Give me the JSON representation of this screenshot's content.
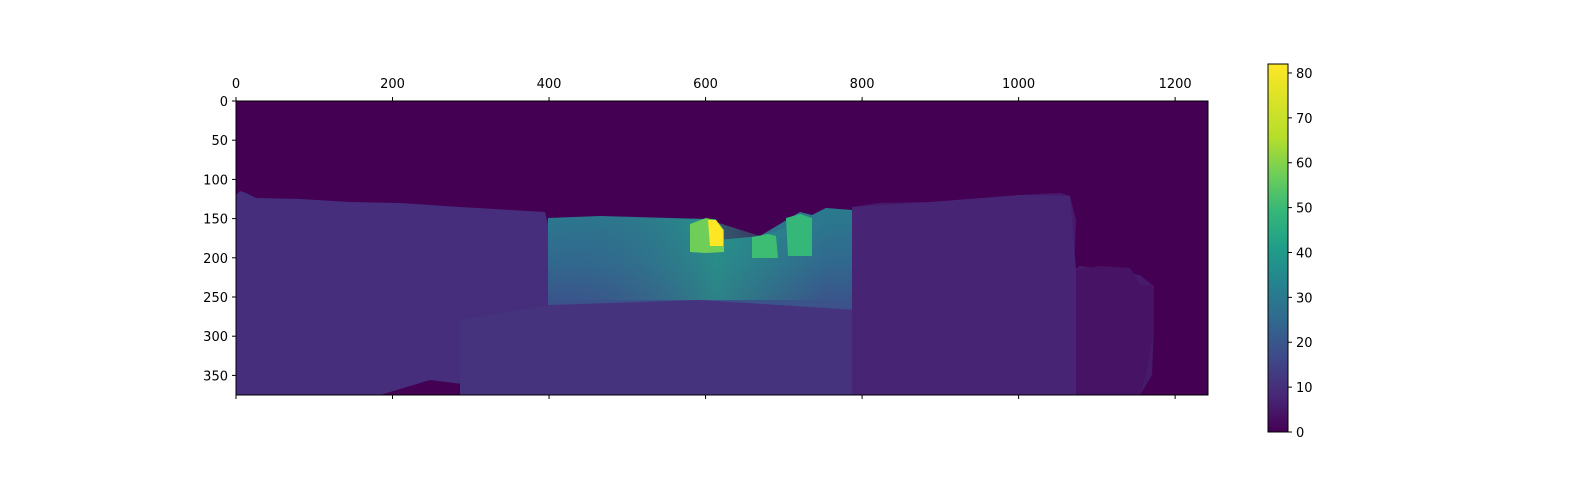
{
  "chart_data": {
    "type": "heatmap",
    "title": "",
    "xlabel": "",
    "ylabel": "",
    "colormap": "viridis",
    "image_width": 1242,
    "image_height": 375,
    "xlim": [
      0,
      1242
    ],
    "ylim": [
      375,
      0
    ],
    "x_ticks": [
      0,
      200,
      400,
      600,
      800,
      1000,
      1200
    ],
    "y_ticks": [
      0,
      50,
      100,
      150,
      200,
      250,
      300,
      350
    ],
    "x_tick_position": "top",
    "colorbar": {
      "min": 0,
      "max": 82,
      "ticks": [
        0,
        10,
        20,
        30,
        40,
        50,
        60,
        70,
        80
      ],
      "placement": "right"
    },
    "background_value": 0,
    "regions": [
      {
        "name": "sky",
        "value": 0
      },
      {
        "name": "left-buildings",
        "x_range": [
          0,
          400
        ],
        "y_range": [
          120,
          375
        ],
        "value": 10
      },
      {
        "name": "road-center",
        "x_range": [
          400,
          760
        ],
        "y_range": [
          150,
          375
        ],
        "value_range": [
          9,
          50
        ]
      },
      {
        "name": "far-object",
        "x_range": [
          580,
          620
        ],
        "y_range": [
          150,
          195
        ],
        "value": 82
      },
      {
        "name": "right-buildings",
        "x_range": [
          790,
          1070
        ],
        "y_range": [
          120,
          375
        ],
        "value": 9
      },
      {
        "name": "right-edge-objects",
        "x_range": [
          1070,
          1170
        ],
        "y_range": [
          210,
          375
        ],
        "value": 8
      }
    ]
  }
}
